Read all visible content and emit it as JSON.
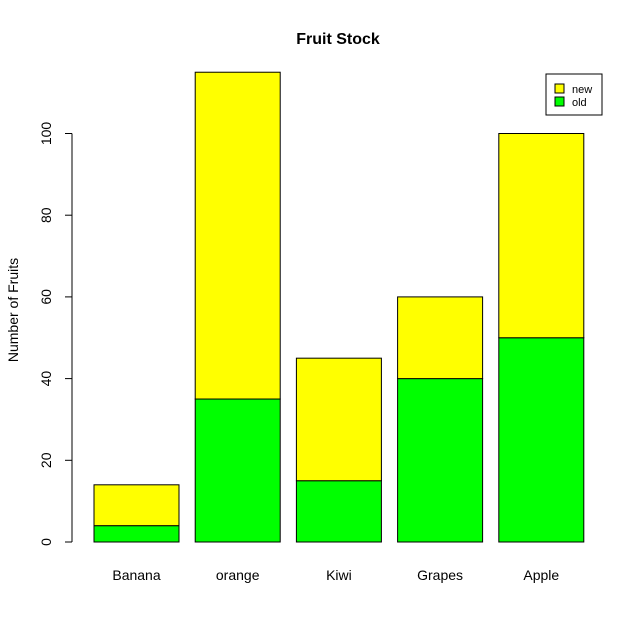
{
  "chart_data": {
    "type": "bar",
    "stacked": true,
    "title": "Fruit Stock",
    "xlabel": "",
    "ylabel": "Number of Fruits",
    "categories": [
      "Banana",
      "orange",
      "Kiwi",
      "Grapes",
      "Apple"
    ],
    "series": [
      {
        "name": "old",
        "color": "#00ff00",
        "values": [
          4,
          35,
          15,
          40,
          50
        ]
      },
      {
        "name": "new",
        "color": "#ffff00",
        "values": [
          10,
          80,
          30,
          20,
          50
        ]
      }
    ],
    "ylim": [
      0,
      115
    ],
    "yticks": [
      0,
      20,
      40,
      60,
      80,
      100
    ],
    "grid": false,
    "legend_position": "top-right",
    "legend_order": [
      "new",
      "old"
    ]
  }
}
